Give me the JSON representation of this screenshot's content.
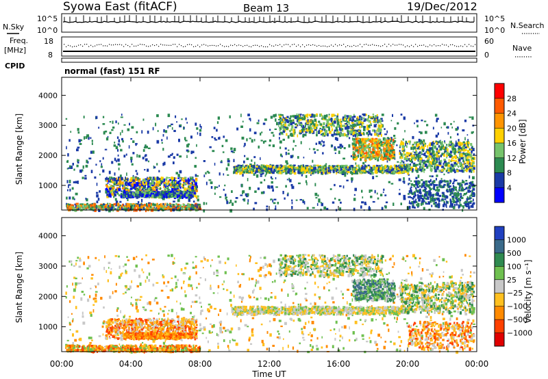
{
  "header": {
    "station": "Syowa East (fitACF)",
    "beam": "Beam 13",
    "date": "19/Dec/2012"
  },
  "panels": {
    "nsky": {
      "left_label": "N.Sky",
      "right_label": "N.Search",
      "left_ticks": [
        "10^5",
        "10^0"
      ],
      "right_ticks": [
        "10^5",
        "10^0"
      ]
    },
    "freq": {
      "left_label_1": "Freq.",
      "left_label_2": "[MHz]",
      "left_ticks": [
        "18",
        "8"
      ],
      "right_label": "Nave",
      "right_ticks": [
        "60",
        "0"
      ]
    },
    "cpid": {
      "label": "CPID",
      "value": "normal (fast) 151 RF"
    }
  },
  "chart_data": [
    {
      "type": "heatmap",
      "name": "power",
      "ylabel": "Slant Range [km]",
      "xlabel": "",
      "ylim": [
        180,
        4600
      ],
      "yticks": [
        1000,
        2000,
        3000,
        4000
      ],
      "colorbar": {
        "label": "Power [dB]",
        "ticks": [
          "28",
          "24",
          "20",
          "16",
          "12",
          "8",
          "4"
        ],
        "colors": [
          "#ff0000",
          "#ff5a00",
          "#ff9400",
          "#ffd000",
          "#76c36b",
          "#2c8a51",
          "#1a3aa6",
          "#0000ff"
        ]
      }
    },
    {
      "type": "heatmap",
      "name": "velocity",
      "ylabel": "Slant Range [km]",
      "xlabel": "Time UT",
      "ylim": [
        180,
        4600
      ],
      "yticks": [
        1000,
        2000,
        3000,
        4000
      ],
      "xticks": [
        "00:00",
        "04:00",
        "08:00",
        "12:00",
        "16:00",
        "20:00",
        "00:00"
      ],
      "colorbar": {
        "label": "Velocity [m s⁻¹]",
        "ticks": [
          "1000",
          "500",
          "100",
          "25",
          "−25",
          "−100",
          "−500",
          "−1000"
        ],
        "colors": [
          "#2040c0",
          "#3a6a8a",
          "#2f8a50",
          "#6fc050",
          "#c8c8c8",
          "#ffc020",
          "#ff8a00",
          "#ff4000",
          "#e00000"
        ]
      }
    }
  ]
}
